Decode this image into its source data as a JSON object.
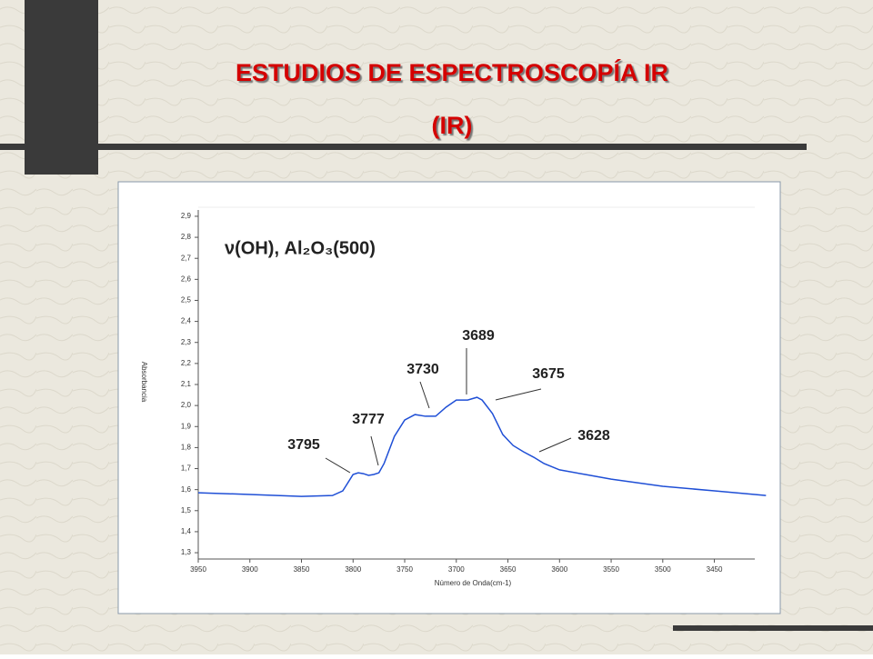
{
  "slide_title": [
    "ESTUDIOS DE ESPECTROSCOPÍA IR",
    "(IR)"
  ],
  "chart_data": {
    "type": "line",
    "title": "ν(OH), Al₂O₃(500)",
    "x_label": "Número de Onda(cm-1)",
    "y_label": "Absorbancia",
    "x": [
      3950,
      3900,
      3850,
      3820,
      3810,
      3800,
      3795,
      3790,
      3785,
      3780,
      3775,
      3770,
      3760,
      3750,
      3740,
      3730,
      3720,
      3710,
      3700,
      3689,
      3680,
      3675,
      3665,
      3655,
      3645,
      3635,
      3625,
      3615,
      3600,
      3575,
      3550,
      3500,
      3450,
      3400
    ],
    "series": [
      {
        "color": "#1f4fd6",
        "values": [
          1.585,
          1.577,
          1.568,
          1.572,
          1.594,
          1.672,
          1.68,
          1.676,
          1.668,
          1.672,
          1.68,
          1.724,
          1.853,
          1.931,
          1.957,
          1.949,
          1.949,
          1.992,
          2.026,
          2.026,
          2.039,
          2.026,
          1.962,
          1.862,
          1.81,
          1.78,
          1.754,
          1.724,
          1.694,
          1.672,
          1.65,
          1.616,
          1.594,
          1.572
        ]
      }
    ],
    "xlim": [
      3950,
      3395
    ],
    "xticks": [
      3950,
      3900,
      3850,
      3800,
      3750,
      3700,
      3650,
      3600,
      3550,
      3500,
      3450
    ],
    "ylim": [
      1.27,
      2.93
    ],
    "yticks": [
      {
        "value": 1.3,
        "label": "1,3"
      },
      {
        "value": 1.4,
        "label": "1,4"
      },
      {
        "value": 1.5,
        "label": "1,5"
      },
      {
        "value": 1.6,
        "label": "1,6"
      },
      {
        "value": 1.7,
        "label": "1,7"
      },
      {
        "value": 1.8,
        "label": "1,8"
      },
      {
        "value": 1.9,
        "label": "1,9"
      },
      {
        "value": 2.0,
        "label": "2,0"
      },
      {
        "value": 2.1,
        "label": "2,1"
      },
      {
        "value": 2.2,
        "label": "2,2"
      },
      {
        "value": 2.3,
        "label": "2,3"
      },
      {
        "value": 2.4,
        "label": "2,4"
      },
      {
        "value": 2.5,
        "label": "2,5"
      },
      {
        "value": 2.6,
        "label": "2,6"
      },
      {
        "value": 2.7,
        "label": "2,7"
      },
      {
        "value": 2.8,
        "label": "2,8"
      },
      {
        "value": 2.9,
        "label": "2,9"
      }
    ],
    "annotations": [
      "3795",
      "3777",
      "3730",
      "3689",
      "3675",
      "3628"
    ]
  }
}
